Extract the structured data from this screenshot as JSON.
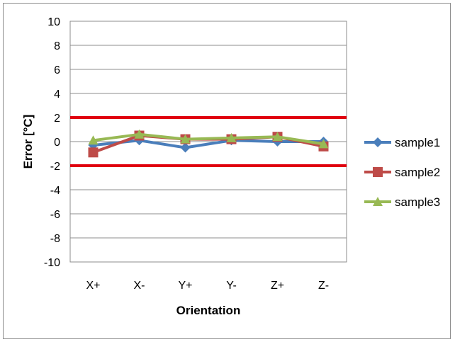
{
  "chart_data": {
    "type": "line",
    "title": "",
    "xlabel": "Orientation",
    "ylabel": "Error [°C]",
    "categories": [
      "X+",
      "X-",
      "Y+",
      "Y-",
      "Z+",
      "Z-"
    ],
    "ylim": [
      -10,
      10
    ],
    "yticks": [
      10,
      8,
      6,
      4,
      2,
      0,
      -2,
      -4,
      -6,
      -8,
      -10
    ],
    "ytick_labels": [
      "10",
      "8",
      "6",
      "4",
      "2",
      "0",
      "-2",
      "-4",
      "-6",
      "-8",
      "-10"
    ],
    "grid": "horizontal",
    "legend_position": "right",
    "series": [
      {
        "name": "sample1",
        "color": "#4a7ebb",
        "marker": "diamond",
        "values": [
          -0.3,
          0.1,
          -0.5,
          0.1,
          0.0,
          0.0
        ]
      },
      {
        "name": "sample2",
        "color": "#be4b48",
        "marker": "square",
        "values": [
          -0.9,
          0.5,
          0.2,
          0.2,
          0.4,
          -0.4
        ]
      },
      {
        "name": "sample3",
        "color": "#98b954",
        "marker": "triangle",
        "values": [
          0.1,
          0.6,
          0.2,
          0.3,
          0.4,
          -0.2
        ]
      }
    ],
    "reference_lines": [
      {
        "value": 2,
        "color": "#e0000e"
      },
      {
        "value": -2,
        "color": "#e0000e"
      }
    ]
  }
}
